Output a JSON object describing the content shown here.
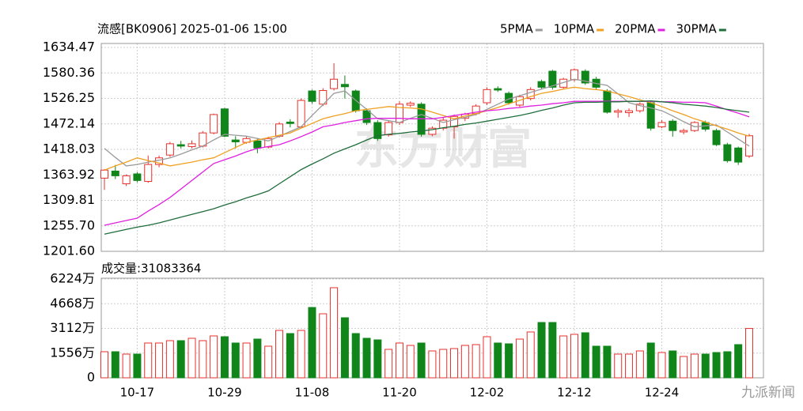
{
  "chart_data": [
    {
      "type": "candlestick",
      "title": "流感[BK0906] 2025-01-06 15:00",
      "up_color": "#e8302c",
      "down_color": "#10861a",
      "grid": true,
      "legend": "top-right",
      "ylim": [
        1201.6,
        1634.47
      ],
      "yticks": [
        {
          "value": 1201.6,
          "label": "1201.60"
        },
        {
          "value": 1255.7,
          "label": "1255.70"
        },
        1309.81,
        1363.92,
        1418.03,
        1472.14,
        1526.25,
        1580.36,
        1634.47
      ],
      "open": [
        1357,
        1372,
        1345,
        1366,
        1350,
        1386,
        1406,
        1428,
        1424,
        1425,
        1453,
        1504,
        1438,
        1433,
        1436,
        1423,
        1446,
        1476,
        1466,
        1542,
        1514,
        1547,
        1556,
        1542,
        1500,
        1475,
        1449,
        1475,
        1512,
        1514,
        1450,
        1463,
        1466,
        1484,
        1494,
        1517,
        1547,
        1537,
        1512,
        1526,
        1562,
        1584,
        1550,
        1566,
        1584,
        1567,
        1542,
        1497,
        1496,
        1500,
        1517,
        1466,
        1478,
        1455,
        1458,
        1475,
        1458,
        1428,
        1421,
        1404
      ],
      "high": [
        1376,
        1385,
        1365,
        1370,
        1405,
        1405,
        1434,
        1436,
        1437,
        1457,
        1494,
        1506,
        1446,
        1446,
        1442,
        1445,
        1476,
        1482,
        1526,
        1545,
        1548,
        1601,
        1575,
        1545,
        1505,
        1480,
        1480,
        1520,
        1520,
        1518,
        1467,
        1486,
        1492,
        1496,
        1514,
        1550,
        1552,
        1541,
        1534,
        1550,
        1566,
        1587,
        1570,
        1590,
        1588,
        1572,
        1546,
        1504,
        1505,
        1518,
        1520,
        1480,
        1482,
        1462,
        1478,
        1479,
        1462,
        1432,
        1424,
        1451
      ],
      "low": [
        1332,
        1355,
        1340,
        1348,
        1347,
        1380,
        1402,
        1420,
        1420,
        1422,
        1450,
        1444,
        1420,
        1430,
        1410,
        1420,
        1443,
        1465,
        1463,
        1515,
        1510,
        1543,
        1526,
        1496,
        1470,
        1436,
        1445,
        1470,
        1508,
        1445,
        1446,
        1458,
        1441,
        1478,
        1490,
        1512,
        1540,
        1513,
        1508,
        1522,
        1545,
        1545,
        1546,
        1562,
        1555,
        1545,
        1494,
        1485,
        1487,
        1496,
        1458,
        1463,
        1445,
        1450,
        1455,
        1456,
        1425,
        1390,
        1385,
        1400
      ],
      "close": [
        1374,
        1362,
        1362,
        1352,
        1386,
        1400,
        1430,
        1425,
        1430,
        1453,
        1492,
        1446,
        1434,
        1441,
        1421,
        1441,
        1472,
        1473,
        1522,
        1520,
        1543,
        1567,
        1551,
        1500,
        1475,
        1441,
        1475,
        1514,
        1516,
        1450,
        1463,
        1480,
        1488,
        1493,
        1510,
        1545,
        1544,
        1517,
        1530,
        1545,
        1550,
        1550,
        1567,
        1587,
        1559,
        1550,
        1497,
        1500,
        1500,
        1514,
        1463,
        1475,
        1458,
        1458,
        1475,
        1461,
        1428,
        1394,
        1391,
        1447
      ],
      "series": [
        {
          "name": "5PMA",
          "color": "#9a9a9a",
          "values": [
            1420,
            1401,
            1383,
            1386,
            1391,
            1395,
            1400,
            1408,
            1417,
            1425,
            1438,
            1450,
            1448,
            1446,
            1441,
            1436,
            1446,
            1456,
            1466,
            1490,
            1513,
            1537,
            1542,
            1522,
            1503,
            1483,
            1479,
            1475,
            1484,
            1492,
            1484,
            1475,
            1481,
            1486,
            1492,
            1503,
            1514,
            1525,
            1532,
            1539,
            1546,
            1553,
            1560,
            1567,
            1563,
            1558,
            1554,
            1536,
            1517,
            1511,
            1506,
            1500,
            1489,
            1477,
            1466,
            1468,
            1470,
            1455,
            1440,
            1425
          ]
        },
        {
          "name": "10PMA",
          "color": "#f0a020",
          "values": [
            1374,
            1383,
            1391,
            1400,
            1394,
            1389,
            1383,
            1387,
            1391,
            1396,
            1400,
            1411,
            1422,
            1433,
            1438,
            1443,
            1448,
            1453,
            1463,
            1473,
            1483,
            1489,
            1494,
            1500,
            1503,
            1506,
            1509,
            1507,
            1506,
            1504,
            1497,
            1490,
            1483,
            1489,
            1494,
            1500,
            1507,
            1515,
            1522,
            1530,
            1537,
            1541,
            1546,
            1550,
            1547,
            1545,
            1542,
            1536,
            1530,
            1523,
            1517,
            1509,
            1500,
            1492,
            1483,
            1476,
            1468,
            1461,
            1453,
            1446
          ]
        },
        {
          "name": "20PMA",
          "color": "#e020e0",
          "values": [
            1257,
            1262,
            1267,
            1272,
            1287,
            1301,
            1316,
            1334,
            1352,
            1370,
            1388,
            1396,
            1404,
            1413,
            1420,
            1424,
            1428,
            1436,
            1445,
            1455,
            1466,
            1470,
            1475,
            1479,
            1483,
            1484,
            1484,
            1484,
            1483,
            1483,
            1483,
            1486,
            1490,
            1493,
            1497,
            1500,
            1502,
            1505,
            1507,
            1510,
            1512,
            1515,
            1517,
            1520,
            1520,
            1520,
            1520,
            1520,
            1520,
            1520,
            1520,
            1519,
            1519,
            1518,
            1518,
            1517,
            1510,
            1502,
            1495,
            1487
          ]
        },
        {
          "name": "30PMA",
          "color": "#1f6e3a",
          "values": [
            1238,
            1243,
            1248,
            1253,
            1257,
            1262,
            1268,
            1274,
            1280,
            1286,
            1292,
            1300,
            1307,
            1315,
            1322,
            1330,
            1345,
            1360,
            1375,
            1387,
            1398,
            1410,
            1419,
            1428,
            1438,
            1447,
            1450,
            1452,
            1455,
            1457,
            1460,
            1464,
            1467,
            1471,
            1474,
            1478,
            1482,
            1486,
            1490,
            1495,
            1501,
            1506,
            1512,
            1517,
            1518,
            1518,
            1519,
            1519,
            1520,
            1520,
            1521,
            1519,
            1517,
            1514,
            1512,
            1510,
            1507,
            1503,
            1500,
            1497
          ]
        }
      ],
      "watermark": "东方财富"
    },
    {
      "type": "bar",
      "title": "成交量:31083364",
      "grid": true,
      "ylim": [
        0,
        6224
      ],
      "yticks": [
        0,
        {
          "value": 1556,
          "label": "1556万"
        },
        {
          "value": 3112,
          "label": "3112万"
        },
        {
          "value": 4668,
          "label": "4668万"
        },
        {
          "value": 6224,
          "label": "6224万"
        }
      ],
      "categories": [
        null,
        null,
        null,
        "10-17",
        null,
        null,
        null,
        null,
        null,
        null,
        null,
        "10-29",
        null,
        null,
        null,
        null,
        null,
        null,
        null,
        "11-08",
        null,
        null,
        null,
        null,
        null,
        null,
        null,
        "11-20",
        null,
        null,
        null,
        null,
        null,
        null,
        null,
        "12-02",
        null,
        null,
        null,
        null,
        null,
        null,
        null,
        "12-12",
        null,
        null,
        null,
        null,
        null,
        null,
        null,
        "12-24",
        null,
        null,
        null,
        null,
        null,
        null,
        null,
        null
      ],
      "values": [
        1643,
        1643,
        1494,
        1494,
        2191,
        2191,
        2340,
        2340,
        2490,
        2340,
        2639,
        2589,
        2191,
        2191,
        2440,
        1992,
        2987,
        2788,
        2987,
        4431,
        4033,
        5676,
        3784,
        2788,
        2490,
        2390,
        1792,
        2191,
        2041,
        2191,
        1693,
        1792,
        1842,
        2041,
        2091,
        2589,
        2191,
        2141,
        2440,
        2888,
        3485,
        3485,
        2639,
        2738,
        2838,
        1992,
        1992,
        1494,
        1494,
        1693,
        2191,
        1593,
        1693,
        1344,
        1494,
        1494,
        1593,
        1643,
        2091,
        3108
      ],
      "source_watermark": "九派新闻"
    }
  ]
}
